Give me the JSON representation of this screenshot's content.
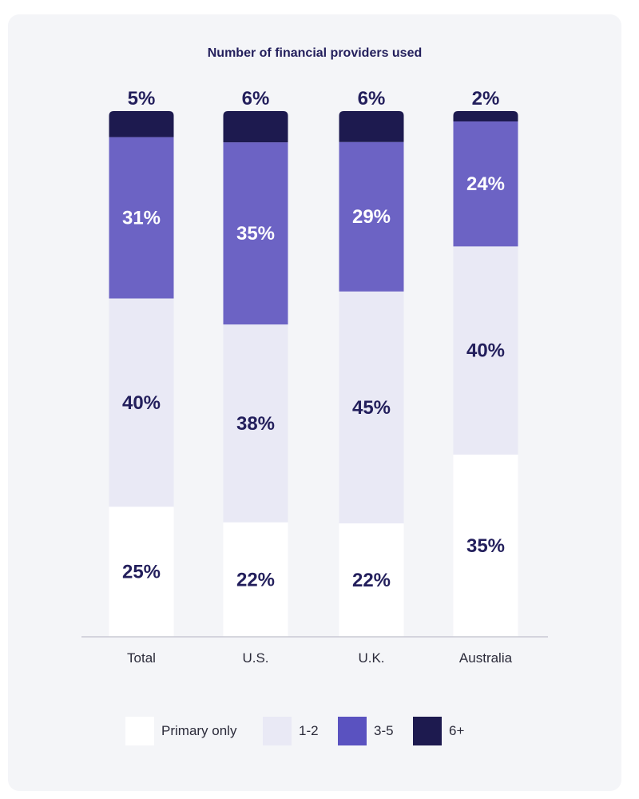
{
  "chart_data": {
    "type": "bar",
    "stacked": true,
    "title": "Number of financial providers used",
    "categories": [
      "Total",
      "U.S.",
      "U.K.",
      "Australia"
    ],
    "series": [
      {
        "name": "Primary only",
        "color": "#ffffff",
        "label_color": "#231f5c",
        "values": [
          25,
          22,
          22,
          35
        ]
      },
      {
        "name": "1-2",
        "color": "#e9e9f5",
        "label_color": "#231f5c",
        "values": [
          40,
          38,
          45,
          40
        ]
      },
      {
        "name": "3-5",
        "color": "#6c63c4",
        "label_color": "#ffffff",
        "values": [
          31,
          35,
          29,
          24
        ]
      },
      {
        "name": "6+",
        "color": "#1d1a4f",
        "label_color": "#231f5c",
        "values": [
          5,
          6,
          6,
          2
        ]
      }
    ],
    "legend_swatch_colors": [
      "#ffffff",
      "#e9e9f5",
      "#5a52c0",
      "#1d1a4f"
    ],
    "value_suffix": "%",
    "legend_position": "bottom",
    "axis_color": "#c9cad4",
    "text_color": "#231f5c"
  }
}
